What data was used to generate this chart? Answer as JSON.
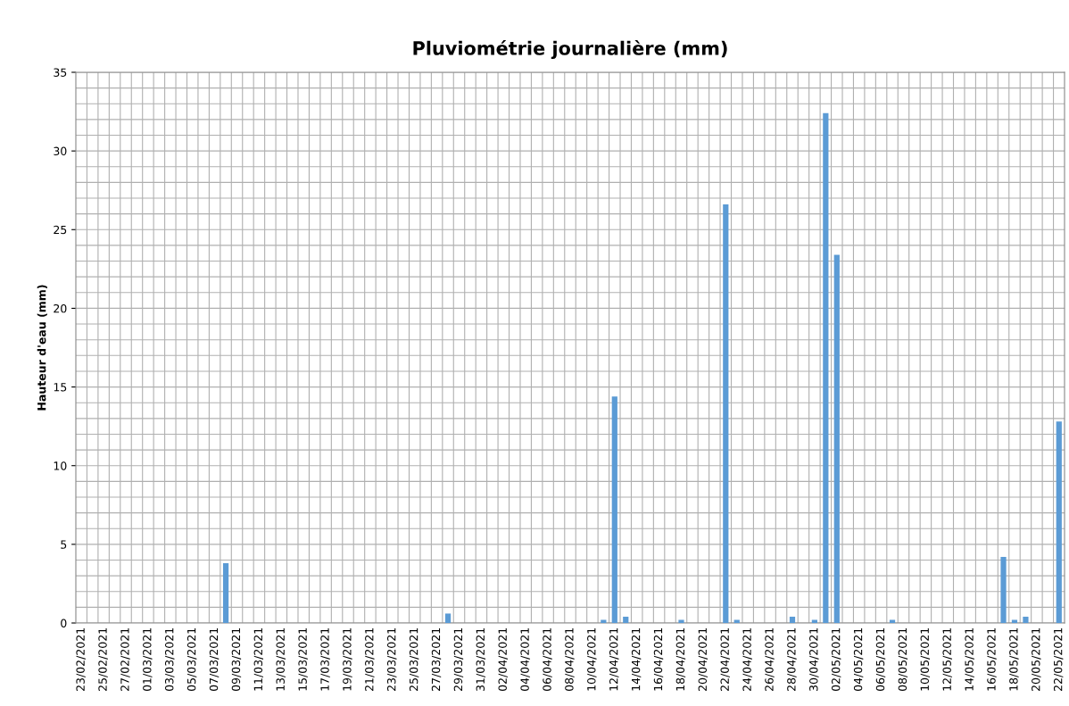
{
  "chart_data": {
    "type": "bar",
    "title": "Pluviométrie journalière (mm)",
    "ylabel": "Hauteur d'eau (mm)",
    "categories": [
      "23/02/2021",
      null,
      "25/02/2021",
      null,
      "27/02/2021",
      null,
      "01/03/2021",
      null,
      "03/03/2021",
      null,
      "05/03/2021",
      null,
      "07/03/2021",
      null,
      "09/03/2021",
      null,
      "11/03/2021",
      null,
      "13/03/2021",
      null,
      "15/03/2021",
      null,
      "17/03/2021",
      null,
      "19/03/2021",
      null,
      "21/03/2021",
      null,
      "23/03/2021",
      null,
      "25/03/2021",
      null,
      "27/03/2021",
      null,
      "29/03/2021",
      null,
      "31/03/2021",
      null,
      "02/04/2021",
      null,
      "04/04/2021",
      null,
      "06/04/2021",
      null,
      "08/04/2021",
      null,
      "10/04/2021",
      null,
      "12/04/2021",
      null,
      "14/04/2021",
      null,
      "16/04/2021",
      null,
      "18/04/2021",
      null,
      "20/04/2021",
      null,
      "22/04/2021",
      null,
      "24/04/2021",
      null,
      "26/04/2021",
      null,
      "28/04/2021",
      null,
      "30/04/2021",
      null,
      "02/05/2021",
      null,
      "04/05/2021",
      null,
      "06/05/2021",
      null,
      "08/05/2021",
      null,
      "10/05/2021",
      null,
      "12/05/2021",
      null,
      "14/05/2021",
      null,
      "16/05/2021",
      null,
      "18/05/2021",
      null,
      "20/05/2021",
      null,
      "22/05/2021"
    ],
    "values": [
      0,
      0,
      0,
      0,
      0,
      0,
      0,
      0,
      0,
      0,
      0,
      0,
      0,
      3.8,
      0,
      0,
      0,
      0,
      0,
      0,
      0,
      0,
      0,
      0,
      0,
      0,
      0,
      0,
      0,
      0,
      0,
      0,
      0,
      0.6,
      0,
      0,
      0,
      0,
      0,
      0,
      0,
      0,
      0,
      0,
      0,
      0,
      0,
      0.2,
      14.4,
      0.4,
      0,
      0,
      0,
      0,
      0.2,
      0,
      0,
      0,
      26.6,
      0.2,
      0,
      0,
      0,
      0,
      0.4,
      0,
      0.2,
      32.4,
      23.4,
      0,
      0,
      0,
      0,
      0.2,
      0,
      0,
      0,
      0,
      0,
      0,
      0,
      0,
      0,
      4.2,
      0.2,
      0.4,
      0,
      0,
      12.8
    ],
    "color": "#5b9bd5",
    "ylim": [
      0,
      35
    ],
    "yticks": [
      0,
      5,
      10,
      15,
      20,
      25,
      30,
      35
    ],
    "grid": true
  }
}
